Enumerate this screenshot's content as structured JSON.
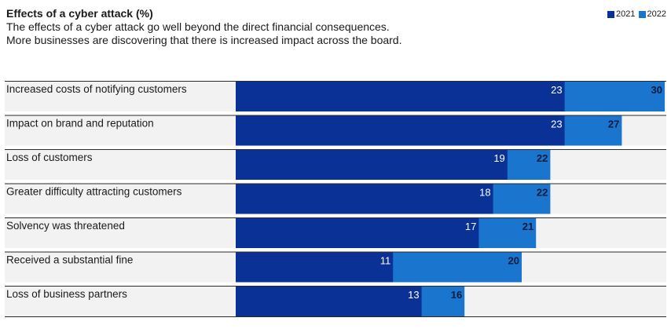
{
  "chart_data": {
    "type": "bar",
    "title": "Effects of a cyber attack (%)",
    "subtitle_lines": [
      "The effects of a cyber attack go well beyond the direct financial consequences.",
      "More businesses are discovering that there is increased impact across the board."
    ],
    "categories": [
      "Increased costs of notifying customers",
      "Impact on brand and reputation",
      "Loss of customers",
      "Greater difficulty attracting customers",
      "Solvency was threatened",
      "Received a substantial fine",
      "Loss of business partners"
    ],
    "series": [
      {
        "name": "2021",
        "values": [
          23,
          23,
          19,
          18,
          17,
          11,
          13
        ],
        "color": "#0a3296"
      },
      {
        "name": "2022",
        "values": [
          30,
          27,
          22,
          22,
          21,
          20,
          16
        ],
        "color": "#1a75cf"
      }
    ],
    "xlim": [
      0,
      30
    ],
    "orientation": "horizontal",
    "label_color_2021": "#ffffff",
    "label_color_2022": "#0a1a3c",
    "row_background": "#f2f2f2",
    "legend_position": "top-right",
    "grid": false
  }
}
